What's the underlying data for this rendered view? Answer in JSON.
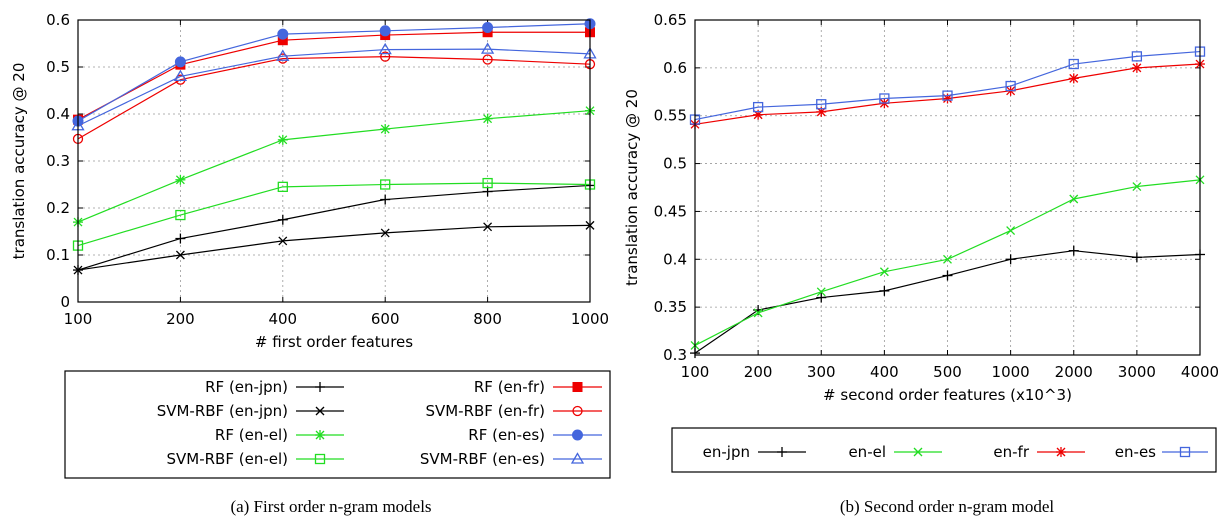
{
  "chart_data": [
    {
      "type": "line",
      "caption": "(a) First order n-gram models",
      "xlabel": "# first order features",
      "ylabel": "translation accuracy @ 20",
      "x": [
        "100",
        "200",
        "400",
        "600",
        "800",
        "1000"
      ],
      "y_ticks": [
        "0",
        "0.1",
        "0.2",
        "0.3",
        "0.4",
        "0.5",
        "0.6"
      ],
      "ylim": [
        0,
        0.6
      ],
      "grid": true,
      "legend_position": "below",
      "series": [
        {
          "name": "RF (en-jpn)",
          "color": "#000000",
          "marker": "plus",
          "values": [
            0.068,
            0.135,
            0.175,
            0.218,
            0.235,
            0.248
          ]
        },
        {
          "name": "SVM-RBF (en-jpn)",
          "color": "#000000",
          "marker": "cross",
          "values": [
            0.068,
            0.1,
            0.13,
            0.147,
            0.16,
            0.163
          ]
        },
        {
          "name": "RF (en-el)",
          "color": "#22dd22",
          "marker": "star",
          "values": [
            0.17,
            0.26,
            0.345,
            0.368,
            0.39,
            0.407
          ]
        },
        {
          "name": "SVM-RBF (en-el)",
          "color": "#22dd22",
          "marker": "square-open",
          "values": [
            0.12,
            0.185,
            0.245,
            0.25,
            0.253,
            0.25
          ]
        },
        {
          "name": "RF (en-fr)",
          "color": "#ee0000",
          "marker": "square-filled",
          "values": [
            0.388,
            0.505,
            0.557,
            0.568,
            0.574,
            0.574
          ]
        },
        {
          "name": "SVM-RBF (en-fr)",
          "color": "#ee0000",
          "marker": "circle-open",
          "values": [
            0.347,
            0.473,
            0.518,
            0.522,
            0.516,
            0.506
          ]
        },
        {
          "name": "RF (en-es)",
          "color": "#4466dd",
          "marker": "circle-filled",
          "values": [
            0.385,
            0.511,
            0.57,
            0.577,
            0.584,
            0.592
          ]
        },
        {
          "name": "SVM-RBF (en-es)",
          "color": "#4466dd",
          "marker": "triangle-open",
          "values": [
            0.375,
            0.48,
            0.523,
            0.537,
            0.538,
            0.528
          ]
        }
      ]
    },
    {
      "type": "line",
      "caption": "(b) Second order n-gram model",
      "xlabel": "# second order features (x10^3)",
      "ylabel": "translation accuracy @ 20",
      "x": [
        "100",
        "200",
        "300",
        "400",
        "500",
        "1000",
        "2000",
        "3000",
        "4000"
      ],
      "y_ticks": [
        "0.3",
        "0.35",
        "0.4",
        "0.45",
        "0.5",
        "0.55",
        "0.6",
        "0.65"
      ],
      "ylim": [
        0.3,
        0.65
      ],
      "grid": true,
      "legend_position": "below",
      "series": [
        {
          "name": "en-jpn",
          "color": "#000000",
          "marker": "plus",
          "values": [
            0.302,
            0.347,
            0.36,
            0.367,
            0.383,
            0.4,
            0.409,
            0.402,
            0.405
          ]
        },
        {
          "name": "en-el",
          "color": "#22dd22",
          "marker": "cross",
          "values": [
            0.31,
            0.344,
            0.366,
            0.387,
            0.4,
            0.43,
            0.463,
            0.476,
            0.483
          ]
        },
        {
          "name": "en-fr",
          "color": "#ee0000",
          "marker": "star",
          "values": [
            0.541,
            0.551,
            0.554,
            0.563,
            0.568,
            0.576,
            0.589,
            0.6,
            0.604
          ]
        },
        {
          "name": "en-es",
          "color": "#4466dd",
          "marker": "square-open",
          "values": [
            0.546,
            0.559,
            0.562,
            0.568,
            0.571,
            0.581,
            0.604,
            0.612,
            0.617
          ]
        }
      ]
    }
  ]
}
